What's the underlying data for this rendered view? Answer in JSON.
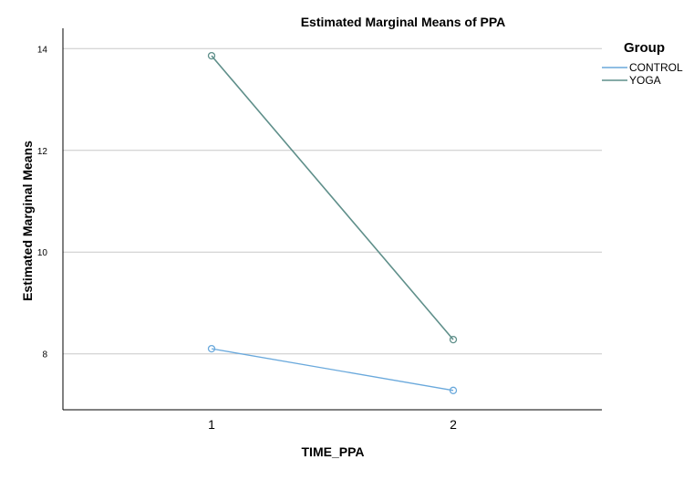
{
  "chart_data": {
    "type": "line",
    "title": "Estimated Marginal Means of PPA",
    "xlabel": "TIME_PPA",
    "ylabel": "Estimated Marginal Means",
    "categories": [
      "1",
      "2"
    ],
    "y_ticks": [
      "8",
      "10",
      "12",
      "14"
    ],
    "ylim": [
      6.9,
      14.4
    ],
    "grid": "horizontal",
    "legend": {
      "title": "Group",
      "placement": "top-right"
    },
    "series": [
      {
        "name": "CONTROL",
        "values": [
          8.1,
          7.28
        ],
        "color": "#6aa9dc"
      },
      {
        "name": "YOGA",
        "values": [
          13.86,
          8.28
        ],
        "color": "#5f8f8a"
      }
    ]
  }
}
